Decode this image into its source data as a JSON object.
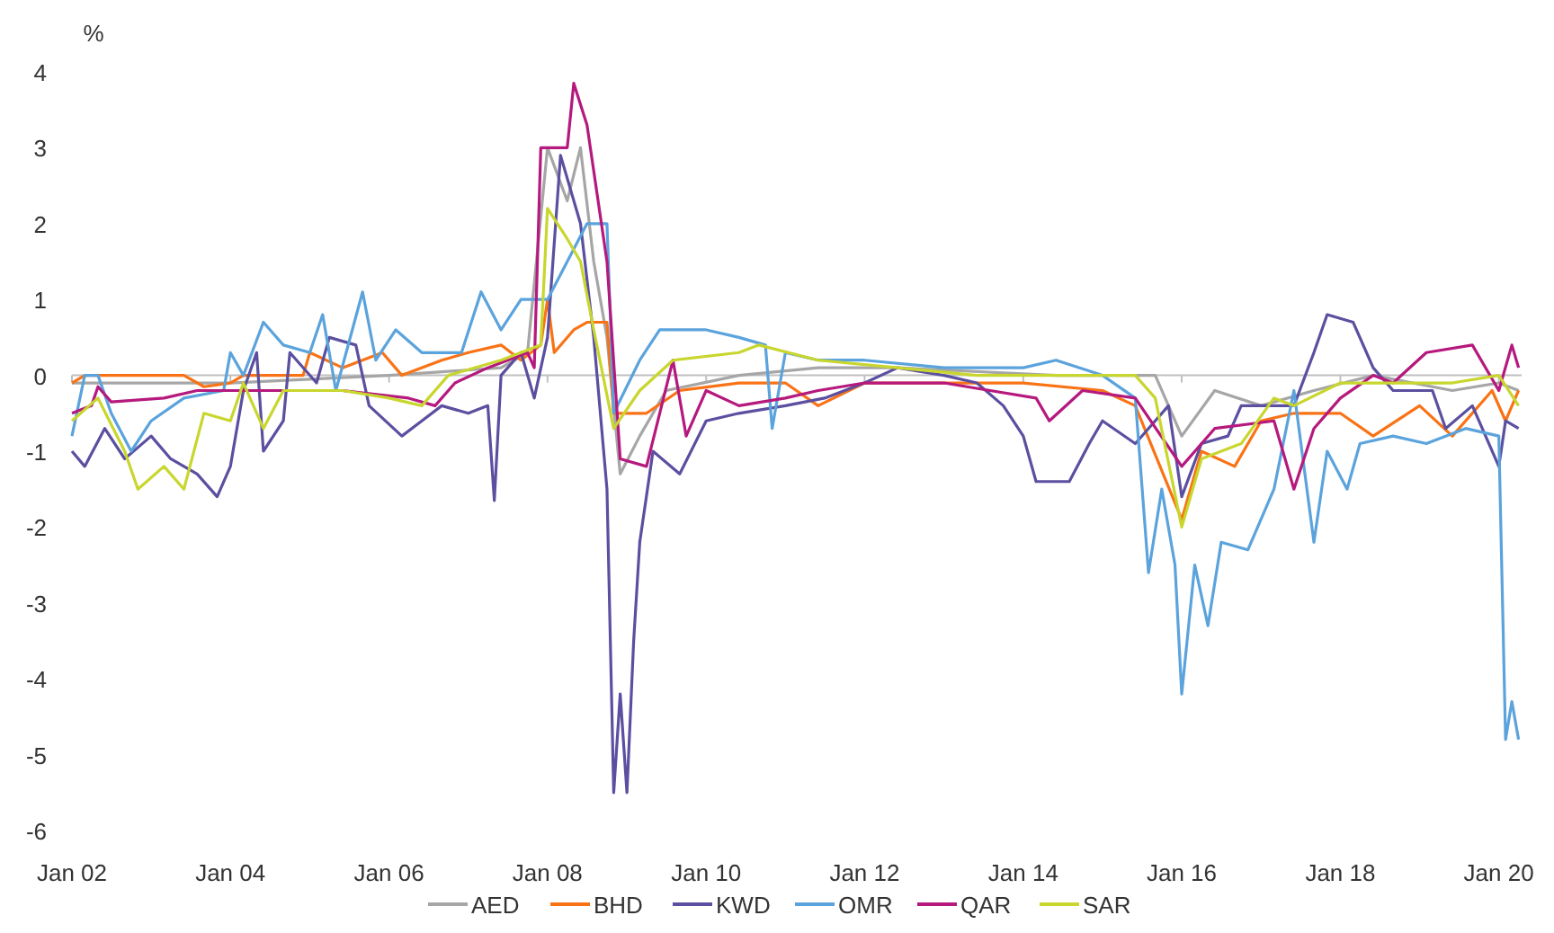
{
  "chart_data": {
    "type": "line",
    "ylabel": "%",
    "xlim": [
      "2002-01-01",
      "2020-04-15"
    ],
    "xticks": [
      {
        "value": "2002-01-01",
        "label": "Jan 02"
      },
      {
        "value": "2004-01-01",
        "label": "Jan 04"
      },
      {
        "value": "2006-01-01",
        "label": "Jan 06"
      },
      {
        "value": "2008-01-01",
        "label": "Jan 08"
      },
      {
        "value": "2010-01-01",
        "label": "Jan 10"
      },
      {
        "value": "2012-01-01",
        "label": "Jan 12"
      },
      {
        "value": "2014-01-01",
        "label": "Jan 14"
      },
      {
        "value": "2016-01-01",
        "label": "Jan 16"
      },
      {
        "value": "2018-01-01",
        "label": "Jan 18"
      },
      {
        "value": "2020-01-01",
        "label": "Jan 20"
      }
    ],
    "ylim": [
      -6,
      4
    ],
    "yticks": [
      -6,
      -5,
      -4,
      -3,
      -2,
      -1,
      0,
      1,
      2,
      3,
      4
    ],
    "grid": false,
    "ref_lines": [
      {
        "axis": "y",
        "value": 0,
        "color": "#c0c0c0"
      }
    ],
    "legend": "bottom",
    "marker": "none",
    "line_style": "solid",
    "series": [
      {
        "name": "AED",
        "color": "#a6a6a6",
        "x": [
          "2002-01",
          "2004-01",
          "2006-01",
          "2007-06",
          "2007-10",
          "2008-01",
          "2008-04",
          "2008-06",
          "2008-08",
          "2008-10",
          "2008-12",
          "2009-03",
          "2009-07",
          "2010-06",
          "2011-06",
          "2012-06",
          "2014-06",
          "2015-06",
          "2015-09",
          "2016-01",
          "2016-06",
          "2017-01",
          "2017-09",
          "2018-06",
          "2019-06",
          "2020-01",
          "2020-04"
        ],
        "values": [
          -0.1,
          -0.1,
          0.0,
          0.1,
          0.3,
          3.0,
          2.3,
          3.0,
          1.5,
          0.5,
          -1.3,
          -0.8,
          -0.2,
          0.0,
          0.1,
          0.1,
          0.0,
          0.0,
          0.0,
          -0.8,
          -0.2,
          -0.4,
          -0.2,
          0.0,
          -0.2,
          -0.1,
          -0.2
        ]
      },
      {
        "name": "BHD",
        "color": "#f97316",
        "x": [
          "2002-01",
          "2002-03",
          "2003-06",
          "2003-09",
          "2004-01",
          "2004-03",
          "2004-12",
          "2005-01",
          "2005-06",
          "2005-12",
          "2006-03",
          "2006-09",
          "2007-01",
          "2007-06",
          "2007-09",
          "2007-12",
          "2008-01",
          "2008-02",
          "2008-05",
          "2008-07",
          "2008-10",
          "2008-11",
          "2009-04",
          "2009-09",
          "2010-06",
          "2011-01",
          "2011-06",
          "2012-01",
          "2013-01",
          "2014-01",
          "2015-01",
          "2015-06",
          "2016-01",
          "2016-04",
          "2016-09",
          "2017-01",
          "2017-06",
          "2018-01",
          "2018-06",
          "2019-01",
          "2019-06",
          "2019-12",
          "2020-02",
          "2020-04"
        ],
        "values": [
          -0.1,
          0.0,
          0.0,
          -0.15,
          -0.1,
          0.0,
          0.0,
          0.3,
          0.1,
          0.3,
          0.0,
          0.2,
          0.3,
          0.4,
          0.2,
          0.4,
          1.0,
          0.3,
          0.6,
          0.7,
          0.7,
          -0.5,
          -0.5,
          -0.2,
          -0.1,
          -0.1,
          -0.4,
          -0.1,
          -0.1,
          -0.1,
          -0.2,
          -0.4,
          -1.9,
          -1.0,
          -1.2,
          -0.6,
          -0.5,
          -0.5,
          -0.8,
          -0.4,
          -0.8,
          -0.2,
          -0.6,
          -0.2
        ]
      },
      {
        "name": "KWD",
        "color": "#5b4fa0",
        "x": [
          "2002-01",
          "2002-03",
          "2002-06",
          "2002-09",
          "2003-01",
          "2003-04",
          "2003-08",
          "2003-11",
          "2004-01",
          "2004-03",
          "2004-05",
          "2004-06",
          "2004-09",
          "2004-10",
          "2005-02",
          "2005-04",
          "2005-08",
          "2005-10",
          "2006-03",
          "2006-06",
          "2006-09",
          "2007-01",
          "2007-04",
          "2007-05",
          "2007-06",
          "2007-09",
          "2007-11",
          "2008-01",
          "2008-03",
          "2008-06",
          "2008-08",
          "2008-10",
          "2008-11",
          "2008-12",
          "2009-01",
          "2009-02",
          "2009-03",
          "2009-05",
          "2009-09",
          "2010-01",
          "2010-06",
          "2011-01",
          "2011-07",
          "2012-01",
          "2012-06",
          "2013-01",
          "2013-06",
          "2013-10",
          "2014-01",
          "2014-03",
          "2014-08",
          "2014-11",
          "2015-01",
          "2015-06",
          "2015-11",
          "2016-01",
          "2016-04",
          "2016-08",
          "2016-10",
          "2017-06",
          "2017-09",
          "2017-11",
          "2018-03",
          "2018-06",
          "2018-09",
          "2019-03",
          "2019-05",
          "2019-09",
          "2020-01",
          "2020-02",
          "2020-04"
        ],
        "values": [
          -1.0,
          -1.2,
          -0.7,
          -1.1,
          -0.8,
          -1.1,
          -1.3,
          -1.6,
          -1.2,
          -0.2,
          0.3,
          -1.0,
          -0.6,
          0.3,
          -0.1,
          0.5,
          0.4,
          -0.4,
          -0.8,
          -0.6,
          -0.4,
          -0.5,
          -0.4,
          -1.65,
          0.0,
          0.3,
          -0.3,
          0.5,
          2.9,
          2.0,
          0.5,
          -1.5,
          -5.5,
          -4.2,
          -5.5,
          -3.5,
          -2.2,
          -1.0,
          -1.3,
          -0.6,
          -0.5,
          -0.4,
          -0.3,
          -0.1,
          0.1,
          0.0,
          -0.1,
          -0.4,
          -0.8,
          -1.4,
          -1.4,
          -0.9,
          -0.6,
          -0.9,
          -0.4,
          -1.6,
          -0.9,
          -0.8,
          -0.4,
          -0.4,
          0.3,
          0.8,
          0.7,
          0.1,
          -0.2,
          -0.2,
          -0.7,
          -0.4,
          -1.2,
          -0.6,
          -0.7
        ]
      },
      {
        "name": "OMR",
        "color": "#5ba3dc",
        "x": [
          "2002-01",
          "2002-03",
          "2002-05",
          "2002-07",
          "2002-10",
          "2003-01",
          "2003-06",
          "2003-12",
          "2004-01",
          "2004-03",
          "2004-06",
          "2004-09",
          "2005-01",
          "2005-03",
          "2005-05",
          "2005-09",
          "2005-11",
          "2006-02",
          "2006-06",
          "2006-12",
          "2007-03",
          "2007-06",
          "2007-09",
          "2008-01",
          "2008-04",
          "2008-07",
          "2008-10",
          "2008-11",
          "2009-03",
          "2009-06",
          "2010-01",
          "2010-06",
          "2010-10",
          "2010-11",
          "2011-01",
          "2011-06",
          "2012-01",
          "2013-01",
          "2014-01",
          "2014-06",
          "2015-01",
          "2015-06",
          "2015-08",
          "2015-10",
          "2015-12",
          "2016-01",
          "2016-03",
          "2016-05",
          "2016-07",
          "2016-11",
          "2017-03",
          "2017-06",
          "2017-09",
          "2017-11",
          "2018-02",
          "2018-04",
          "2018-09",
          "2019-02",
          "2019-08",
          "2020-01",
          "2020-02",
          "2020-03",
          "2020-04"
        ],
        "values": [
          -0.8,
          0.0,
          0.0,
          -0.5,
          -1.0,
          -0.6,
          -0.3,
          -0.2,
          0.3,
          0.0,
          0.7,
          0.4,
          0.3,
          0.8,
          -0.2,
          1.1,
          0.2,
          0.6,
          0.3,
          0.3,
          1.1,
          0.6,
          1.0,
          1.0,
          1.5,
          2.0,
          2.0,
          -0.5,
          0.2,
          0.6,
          0.6,
          0.5,
          0.4,
          -0.7,
          0.3,
          0.2,
          0.2,
          0.1,
          0.1,
          0.2,
          0.0,
          -0.3,
          -2.6,
          -1.5,
          -2.5,
          -4.2,
          -2.5,
          -3.3,
          -2.2,
          -2.3,
          -1.5,
          -0.2,
          -2.2,
          -1.0,
          -1.5,
          -0.9,
          -0.8,
          -0.9,
          -0.7,
          -0.8,
          -4.8,
          -4.3,
          -4.8
        ]
      },
      {
        "name": "QAR",
        "color": "#b5197d",
        "x": [
          "2002-01",
          "2002-04",
          "2002-05",
          "2002-07",
          "2003-03",
          "2003-08",
          "2004-01",
          "2005-06",
          "2006-04",
          "2006-08",
          "2006-11",
          "2007-04",
          "2007-10",
          "2007-11",
          "2007-12",
          "2008-04",
          "2008-05",
          "2008-07",
          "2008-10",
          "2008-12",
          "2009-04",
          "2009-06",
          "2009-08",
          "2009-10",
          "2010-01",
          "2010-06",
          "2011-01",
          "2011-06",
          "2012-01",
          "2013-01",
          "2013-08",
          "2014-03",
          "2014-05",
          "2014-10",
          "2015-06",
          "2016-01",
          "2016-06",
          "2017-03",
          "2017-06",
          "2017-09",
          "2018-01",
          "2018-06",
          "2018-09",
          "2019-02",
          "2019-09",
          "2020-01",
          "2020-03",
          "2020-04"
        ],
        "values": [
          -0.5,
          -0.4,
          -0.15,
          -0.35,
          -0.3,
          -0.2,
          -0.2,
          -0.2,
          -0.3,
          -0.4,
          -0.1,
          0.1,
          0.3,
          0.1,
          3.0,
          3.0,
          3.85,
          3.3,
          1.5,
          -1.1,
          -1.2,
          -0.5,
          0.2,
          -0.8,
          -0.2,
          -0.4,
          -0.3,
          -0.2,
          -0.1,
          -0.1,
          -0.2,
          -0.3,
          -0.6,
          -0.2,
          -0.3,
          -1.2,
          -0.7,
          -0.6,
          -1.5,
          -0.7,
          -0.3,
          0.0,
          -0.1,
          0.3,
          0.4,
          -0.2,
          0.4,
          0.1
        ]
      },
      {
        "name": "SAR",
        "color": "#c8d62e",
        "x": [
          "2002-01",
          "2002-05",
          "2002-09",
          "2002-11",
          "2003-03",
          "2003-06",
          "2003-09",
          "2004-01",
          "2004-03",
          "2004-06",
          "2004-09",
          "2005-06",
          "2006-01",
          "2006-06",
          "2006-10",
          "2007-06",
          "2007-12",
          "2008-01",
          "2008-04",
          "2008-06",
          "2008-08",
          "2008-11",
          "2009-03",
          "2009-08",
          "2010-06",
          "2010-09",
          "2011-06",
          "2012-06",
          "2013-06",
          "2014-06",
          "2015-06",
          "2015-09",
          "2016-01",
          "2016-04",
          "2016-10",
          "2017-03",
          "2017-06",
          "2018-01",
          "2019-06",
          "2020-01",
          "2020-04"
        ],
        "values": [
          -0.6,
          -0.3,
          -1.0,
          -1.5,
          -1.2,
          -1.5,
          -0.5,
          -0.6,
          -0.1,
          -0.7,
          -0.2,
          -0.2,
          -0.3,
          -0.4,
          0.0,
          0.2,
          0.4,
          2.2,
          1.8,
          1.5,
          0.6,
          -0.7,
          -0.2,
          0.2,
          0.3,
          0.4,
          0.2,
          0.1,
          0.0,
          0.0,
          0.0,
          -0.3,
          -2.0,
          -1.1,
          -0.9,
          -0.3,
          -0.4,
          -0.1,
          -0.1,
          0.0,
          -0.4
        ]
      }
    ]
  }
}
